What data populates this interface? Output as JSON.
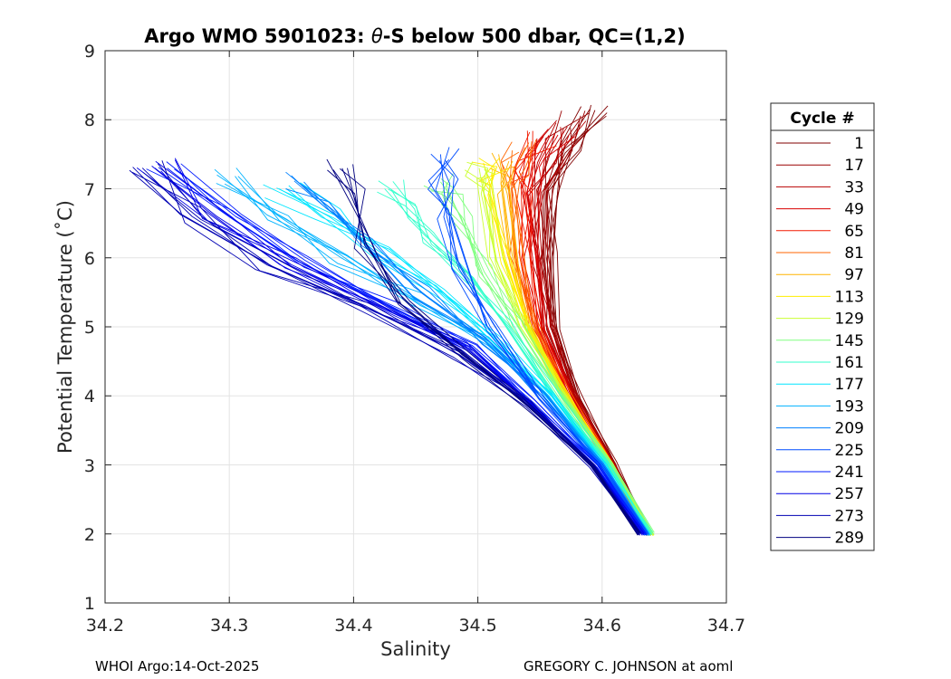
{
  "chart_data": {
    "type": "line",
    "title_parts": [
      "Argo WMO 5901023: ",
      "θ",
      "-S below 500 dbar,  QC=(1,2)"
    ],
    "xlabel": "Salinity",
    "ylabel": "Potential Temperature (˚C)",
    "xlim": [
      34.2,
      34.7
    ],
    "ylim": [
      1,
      9
    ],
    "xticks": [
      "34.2",
      "34.3",
      "34.4",
      "34.5",
      "34.6",
      "34.7"
    ],
    "yticks": [
      "1",
      "2",
      "3",
      "4",
      "5",
      "6",
      "7",
      "8",
      "9"
    ],
    "grid": true,
    "legend": {
      "title": "Cycle #",
      "placement": "right",
      "entries": [
        {
          "label": "1",
          "color": "#800000"
        },
        {
          "label": "17",
          "color": "#9a0000"
        },
        {
          "label": "33",
          "color": "#b80000"
        },
        {
          "label": "49",
          "color": "#d80000"
        },
        {
          "label": "65",
          "color": "#f21a00"
        },
        {
          "label": "81",
          "color": "#ff6600"
        },
        {
          "label": "97",
          "color": "#ffb300"
        },
        {
          "label": "113",
          "color": "#ffee00"
        },
        {
          "label": "129",
          "color": "#ccff33"
        },
        {
          "label": "145",
          "color": "#80ff80"
        },
        {
          "label": "161",
          "color": "#33ffcc"
        },
        {
          "label": "177",
          "color": "#00e6ff"
        },
        {
          "label": "193",
          "color": "#00b3ff"
        },
        {
          "label": "209",
          "color": "#0080ff"
        },
        {
          "label": "225",
          "color": "#004dff"
        },
        {
          "label": "241",
          "color": "#001aff"
        },
        {
          "label": "257",
          "color": "#0000e6"
        },
        {
          "label": "273",
          "color": "#0000b3"
        },
        {
          "label": "289",
          "color": "#000080"
        }
      ]
    },
    "series": [
      {
        "name": "1",
        "color": "#800000",
        "s": [
          34.638,
          34.61,
          34.58,
          34.562,
          34.558,
          34.56,
          34.57,
          34.59
        ],
        "t": [
          2.0,
          3.0,
          4.0,
          5.0,
          6.0,
          7.0,
          7.6,
          8.15
        ]
      },
      {
        "name": "17",
        "color": "#9a0000",
        "s": [
          34.637,
          34.609,
          34.578,
          34.559,
          34.553,
          34.555,
          34.566,
          34.582
        ],
        "t": [
          2.0,
          3.0,
          4.0,
          5.0,
          6.0,
          7.0,
          7.6,
          8.0
        ]
      },
      {
        "name": "33",
        "color": "#b80000",
        "s": [
          34.637,
          34.608,
          34.577,
          34.556,
          34.548,
          34.549,
          34.558,
          34.572
        ],
        "t": [
          2.0,
          3.0,
          4.0,
          5.0,
          6.0,
          7.0,
          7.5,
          7.9
        ]
      },
      {
        "name": "49",
        "color": "#d80000",
        "s": [
          34.636,
          34.607,
          34.575,
          34.552,
          34.542,
          34.542,
          34.55,
          34.562
        ],
        "t": [
          2.0,
          3.0,
          4.0,
          5.0,
          6.0,
          7.0,
          7.4,
          7.8
        ]
      },
      {
        "name": "65",
        "color": "#f21a00",
        "s": [
          34.636,
          34.606,
          34.573,
          34.548,
          34.536,
          34.535,
          34.54,
          34.55
        ],
        "t": [
          2.0,
          3.0,
          4.0,
          5.0,
          6.0,
          7.0,
          7.3,
          7.7
        ]
      },
      {
        "name": "81",
        "color": "#ff6600",
        "s": [
          34.637,
          34.606,
          34.572,
          34.546,
          34.531,
          34.527,
          34.53,
          34.538
        ],
        "t": [
          2.0,
          3.0,
          4.0,
          5.0,
          6.0,
          7.0,
          7.3,
          7.6
        ]
      },
      {
        "name": "97",
        "color": "#ffb300",
        "s": [
          34.638,
          34.606,
          34.571,
          34.543,
          34.526,
          34.52,
          34.521,
          34.525
        ],
        "t": [
          2.0,
          3.0,
          4.0,
          5.0,
          6.0,
          7.0,
          7.2,
          7.4
        ]
      },
      {
        "name": "113",
        "color": "#ffee00",
        "s": [
          34.64,
          34.607,
          34.57,
          34.541,
          34.521,
          34.512,
          34.511,
          34.512
        ],
        "t": [
          2.0,
          3.0,
          4.0,
          5.0,
          6.0,
          7.0,
          7.2,
          7.3
        ]
      },
      {
        "name": "129",
        "color": "#ccff33",
        "s": [
          34.641,
          34.607,
          34.569,
          34.537,
          34.514,
          34.504,
          34.502,
          34.501
        ],
        "t": [
          2.0,
          3.0,
          4.0,
          5.0,
          6.0,
          7.0,
          7.2,
          7.3
        ]
      },
      {
        "name": "145",
        "color": "#80ff80",
        "s": [
          34.64,
          34.606,
          34.567,
          34.533,
          34.505,
          34.488,
          34.478,
          34.47
        ],
        "t": [
          2.0,
          3.0,
          4.0,
          5.0,
          5.8,
          6.5,
          6.9,
          7.1
        ]
      },
      {
        "name": "161",
        "color": "#33ffcc",
        "s": [
          34.639,
          34.604,
          34.563,
          34.525,
          34.49,
          34.46,
          34.44,
          34.425
        ],
        "t": [
          2.0,
          3.0,
          4.0,
          5.0,
          5.7,
          6.3,
          6.7,
          7.0
        ]
      },
      {
        "name": "177",
        "color": "#00e6ff",
        "s": [
          34.638,
          34.602,
          34.559,
          34.516,
          34.47,
          34.42,
          34.38,
          34.34
        ],
        "t": [
          2.0,
          3.0,
          4.0,
          4.8,
          5.5,
          6.1,
          6.6,
          7.0
        ]
      },
      {
        "name": "193",
        "color": "#00b3ff",
        "s": [
          34.637,
          34.6,
          34.555,
          34.508,
          34.45,
          34.39,
          34.34,
          34.29
        ],
        "t": [
          2.0,
          3.0,
          4.0,
          4.8,
          5.4,
          6.0,
          6.6,
          7.2
        ]
      },
      {
        "name": "209",
        "color": "#0080ff",
        "s": [
          34.636,
          34.599,
          34.552,
          34.505,
          34.455,
          34.41,
          34.38,
          34.36
        ],
        "t": [
          2.0,
          3.0,
          4.0,
          4.8,
          5.5,
          6.2,
          6.7,
          7.1
        ]
      },
      {
        "name": "225",
        "color": "#004dff",
        "s": [
          34.636,
          34.598,
          34.55,
          34.51,
          34.485,
          34.475,
          34.472,
          34.47
        ],
        "t": [
          2.0,
          3.0,
          4.0,
          5.0,
          5.9,
          6.6,
          7.1,
          7.5
        ]
      },
      {
        "name": "241",
        "color": "#001aff",
        "s": [
          34.634,
          34.596,
          34.545,
          34.495,
          34.43,
          34.36,
          34.3,
          34.25
        ],
        "t": [
          2.0,
          3.0,
          3.9,
          4.7,
          5.3,
          5.9,
          6.6,
          7.3
        ]
      },
      {
        "name": "257",
        "color": "#0000e6",
        "s": [
          34.632,
          34.594,
          34.542,
          34.49,
          34.42,
          34.35,
          34.29,
          34.24
        ],
        "t": [
          2.0,
          3.0,
          3.9,
          4.7,
          5.3,
          5.9,
          6.6,
          7.3
        ]
      },
      {
        "name": "273",
        "color": "#0000b3",
        "s": [
          34.63,
          34.592,
          34.54,
          34.485,
          34.41,
          34.33,
          34.27,
          34.23
        ],
        "t": [
          2.0,
          3.0,
          3.9,
          4.6,
          5.3,
          5.9,
          6.6,
          7.3
        ]
      },
      {
        "name": "289",
        "color": "#000080",
        "s": [
          34.63,
          34.591,
          34.538,
          34.487,
          34.44,
          34.41,
          34.4,
          34.395
        ],
        "t": [
          2.0,
          3.0,
          3.9,
          4.6,
          5.4,
          6.2,
          6.9,
          7.3
        ]
      }
    ]
  },
  "footer": {
    "left": "WHOI Argo:14-Oct-2025",
    "right": "GREGORY C. JOHNSON at aoml"
  }
}
